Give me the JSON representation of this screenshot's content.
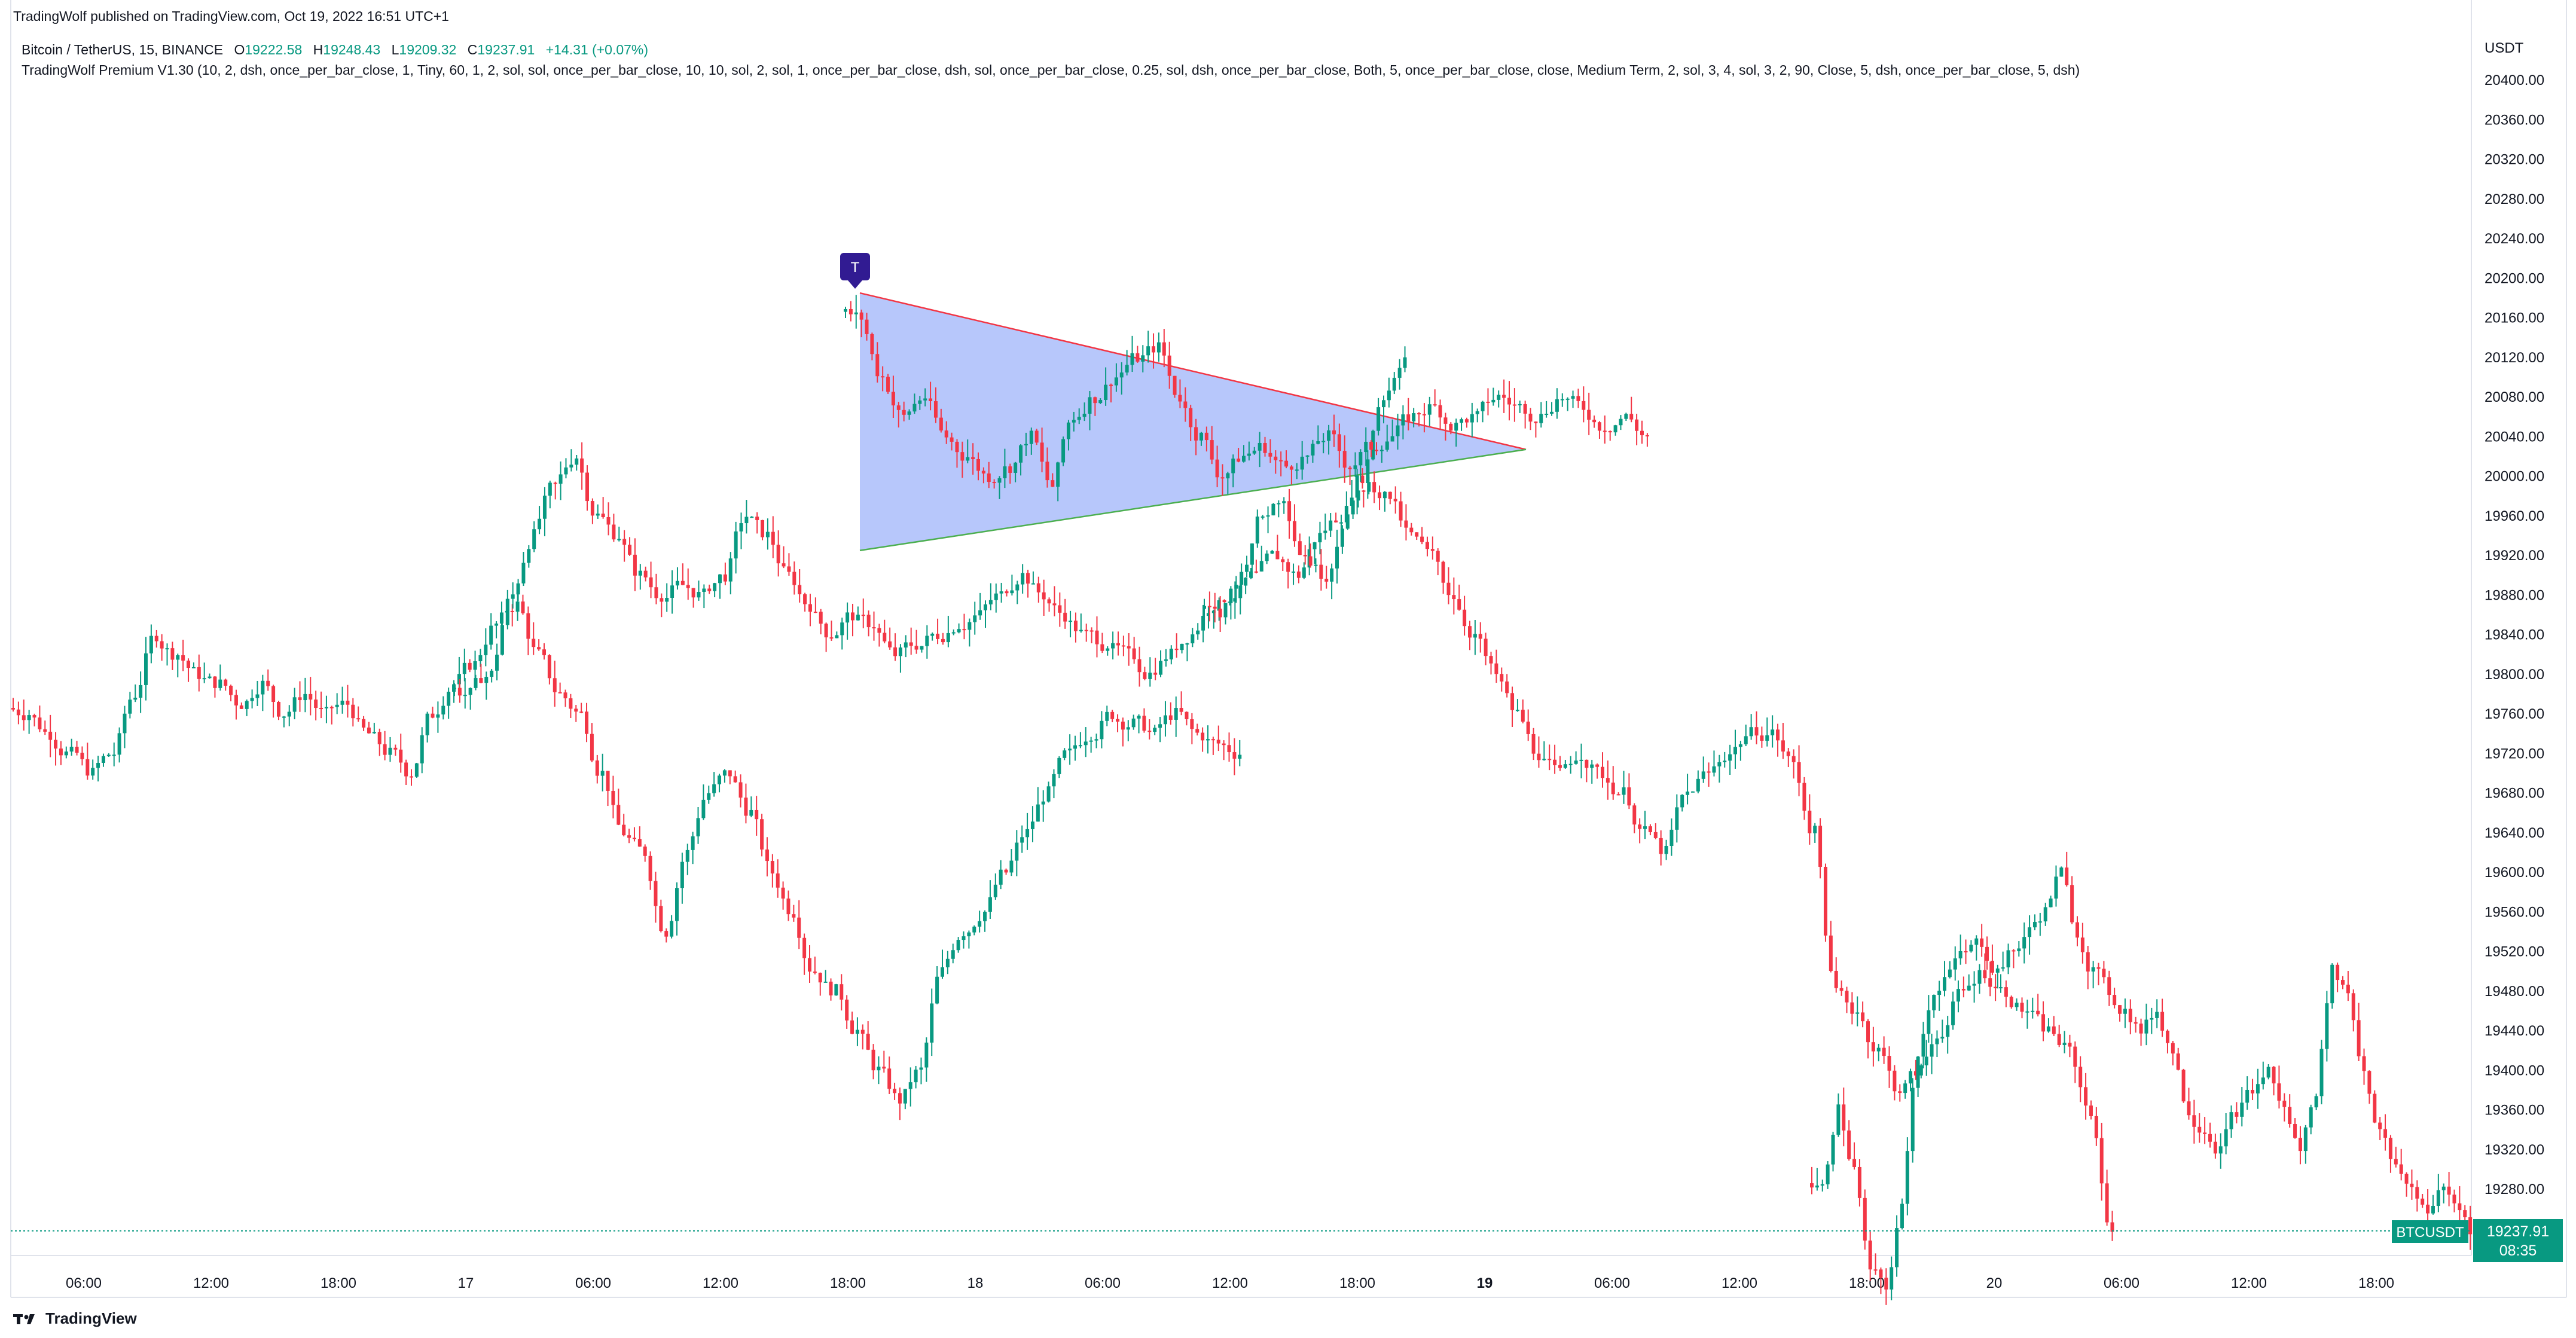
{
  "header": {
    "published": "TradingWolf published on TradingView.com, Oct 19, 2022 16:51 UTC+1"
  },
  "symbol_info": {
    "name": "Bitcoin / TetherUS, 15, BINANCE",
    "open_label": "O",
    "open": "19222.58",
    "high_label": "H",
    "high": "19248.43",
    "low_label": "L",
    "low": "19209.32",
    "close_label": "C",
    "close": "19237.91",
    "change": "+14.31 (+0.07%)"
  },
  "indicator_line": "TradingWolf Premium V1.30 (10, 2, dsh, once_per_bar_close, 1, Tiny, 60, 1, 2, sol, sol, once_per_bar_close, 10, 10, sol, 2, sol, 1, once_per_bar_close, dsh, sol, once_per_bar_close, 0.25, sol, dsh, once_per_bar_close, Both, 5, once_per_bar_close, close, Medium Term, 2, sol, 3, 4, sol, 3, 2, 90, Close, 5, dsh, once_per_bar_close, 5, dsh)",
  "price_tag": {
    "symbol": "BTCUSDT",
    "price": "19237.91",
    "countdown": "08:35"
  },
  "triangle_marker": "T",
  "footer": {
    "logo_text": "TradingView"
  },
  "colors": {
    "up": "#089981",
    "down": "#f23645",
    "triangle_fill": "#b3c4fb",
    "triangle_upper": "#f23645",
    "triangle_lower": "#4caf50",
    "marker": "#311b92",
    "tag": "#089981"
  },
  "chart_data": {
    "type": "candlestick",
    "title": "",
    "ylabel": "USDT",
    "y_ticks": [
      19280,
      19320,
      19360,
      19400,
      19440,
      19480,
      19520,
      19560,
      19600,
      19640,
      19680,
      19720,
      19760,
      19800,
      19840,
      19880,
      19920,
      19960,
      20000,
      20040,
      20080,
      20120,
      20160,
      20200,
      20240,
      20280,
      20320,
      20360,
      20400
    ],
    "y_tick_labels": [
      "19280.00",
      "19320.00",
      "19360.00",
      "19400.00",
      "19440.00",
      "19480.00",
      "19520.00",
      "19560.00",
      "19600.00",
      "19640.00",
      "19680.00",
      "19720.00",
      "19760.00",
      "19800.00",
      "19840.00",
      "19880.00",
      "19920.00",
      "19960.00",
      "20000.00",
      "20040.00",
      "20080.00",
      "20120.00",
      "20160.00",
      "20200.00",
      "20240.00",
      "20280.00",
      "20320.00",
      "20360.00",
      "20400.00"
    ],
    "x_ticks": [
      {
        "label": "06:00",
        "bold": false
      },
      {
        "label": "12:00",
        "bold": false
      },
      {
        "label": "18:00",
        "bold": false
      },
      {
        "label": "17",
        "bold": false
      },
      {
        "label": "06:00",
        "bold": false
      },
      {
        "label": "12:00",
        "bold": false
      },
      {
        "label": "18:00",
        "bold": false
      },
      {
        "label": "18",
        "bold": false
      },
      {
        "label": "06:00",
        "bold": false
      },
      {
        "label": "12:00",
        "bold": false
      },
      {
        "label": "18:00",
        "bold": false
      },
      {
        "label": "19",
        "bold": true
      },
      {
        "label": "06:00",
        "bold": false
      },
      {
        "label": "12:00",
        "bold": false
      },
      {
        "label": "18:00",
        "bold": false
      },
      {
        "label": "20",
        "bold": false
      },
      {
        "label": "06:00",
        "bold": false
      },
      {
        "label": "12:00",
        "bold": false
      },
      {
        "label": "18:00",
        "bold": false
      }
    ],
    "last_price": 19237.91,
    "triangle": {
      "upper_line": {
        "start": 20185,
        "end": 20027
      },
      "lower_line": {
        "start": 19925,
        "end": 20027
      }
    },
    "segments": [
      {
        "segment": "Oct 16 03:00 - Oct 17 00:00",
        "closes": [
          19760,
          19740,
          19720,
          19700,
          19720,
          19780,
          19840,
          19820,
          19800,
          19790,
          19770,
          19790,
          19760,
          19780,
          19760,
          19770,
          19740,
          19720,
          19700,
          19760,
          19790,
          19810,
          19850,
          19870,
          19820,
          19780,
          19760,
          19700,
          19640,
          19620,
          19540,
          19620,
          19680,
          19700,
          19660,
          19600,
          19560,
          19500,
          19480,
          19440,
          19400,
          19370,
          19400,
          19500,
          19540,
          19560,
          19600,
          19640,
          19680,
          19720,
          19740,
          19760,
          19750,
          19740,
          19760,
          19740,
          19730,
          19720
        ]
      },
      {
        "segment": "Oct 17 00:00 - Oct 17 18:00",
        "closes": [
          19780,
          19800,
          19880,
          19940,
          19990,
          20020,
          19960,
          19940,
          19900,
          19880,
          19890,
          19880,
          19900,
          19960,
          19940,
          19900,
          19870,
          19840,
          19860,
          19850,
          19820,
          19830,
          19840,
          19850,
          19860,
          19880,
          19900,
          19880,
          19860,
          19840,
          19830,
          19820,
          19800,
          19820,
          19840,
          19870,
          19880,
          19900,
          19920,
          19900,
          19940,
          19960,
          20000,
          20080,
          20120
        ]
      },
      {
        "segment": "Oct 17 18:00 - Oct 18 09:00",
        "closes": [
          20160,
          20100,
          20060,
          20080,
          20040,
          20020,
          20000,
          20010,
          20040,
          19990,
          20060,
          20080,
          20100,
          20120,
          20130,
          20080,
          20040,
          20000,
          20020,
          20030,
          20010,
          20020,
          20040,
          20010,
          20030,
          20040,
          20060,
          20070,
          20050,
          20060,
          20080,
          20070,
          20060,
          20080,
          20070,
          20050,
          20060,
          20040
        ]
      },
      {
        "segment": "Oct 18 09:00 - Oct 19 03:00",
        "closes": [
          19860,
          19900,
          19960,
          19980,
          19920,
          19900,
          19960,
          19990,
          19980,
          19940,
          19920,
          19880,
          19840,
          19800,
          19760,
          19720,
          19700,
          19720,
          19700,
          19680,
          19640,
          19620,
          19680,
          19700,
          19720,
          19740,
          19740,
          19710,
          19640,
          19480,
          19460,
          19420,
          19380,
          19400,
          19440,
          19480,
          19500,
          19480,
          19460,
          19440,
          19420,
          19360,
          19240
        ]
      },
      {
        "segment": "Oct 19 15:00 - Oct 20 19:00",
        "closes": [
          19280,
          19360,
          19300,
          19200,
          19180,
          19260,
          19420,
          19480,
          19500,
          19520,
          19530,
          19500,
          19520,
          19540,
          19560,
          19600,
          19540,
          19500,
          19480,
          19460,
          19440,
          19460,
          19420,
          19360,
          19340,
          19320,
          19360,
          19380,
          19400,
          19360,
          19320,
          19380,
          19500,
          19480,
          19400,
          19340,
          19300,
          19280,
          19260,
          19280,
          19260,
          19240,
          19220,
          19237.91
        ]
      }
    ]
  }
}
